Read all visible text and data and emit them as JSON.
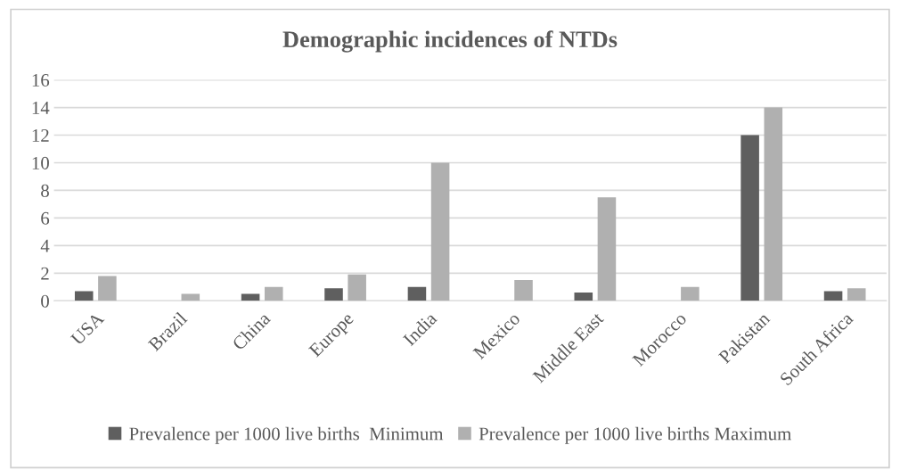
{
  "chart_data": {
    "type": "bar",
    "title": "Demographic incidences of NTDs",
    "categories": [
      "USA",
      "Brazil",
      "China",
      "Europe",
      "India",
      "Mexico",
      "Middle East",
      "Morocco",
      "Pakistan",
      "South Africa"
    ],
    "series": [
      {
        "name": "Prevalence per 1000 live births  Minimum",
        "color": "#5f5f5f",
        "values": [
          0.7,
          null,
          0.5,
          0.9,
          1.0,
          null,
          0.6,
          null,
          12,
          0.7
        ]
      },
      {
        "name": "Prevalence per 1000 live births Maximum",
        "color": "#b0b0b0",
        "values": [
          1.8,
          0.5,
          1.0,
          1.9,
          10,
          1.5,
          7.5,
          1.0,
          14,
          0.9
        ]
      }
    ],
    "ylim": [
      0,
      16
    ],
    "yticks": [
      0,
      2,
      4,
      6,
      8,
      10,
      12,
      14,
      16
    ],
    "grid": "y",
    "legend": "bottom"
  }
}
